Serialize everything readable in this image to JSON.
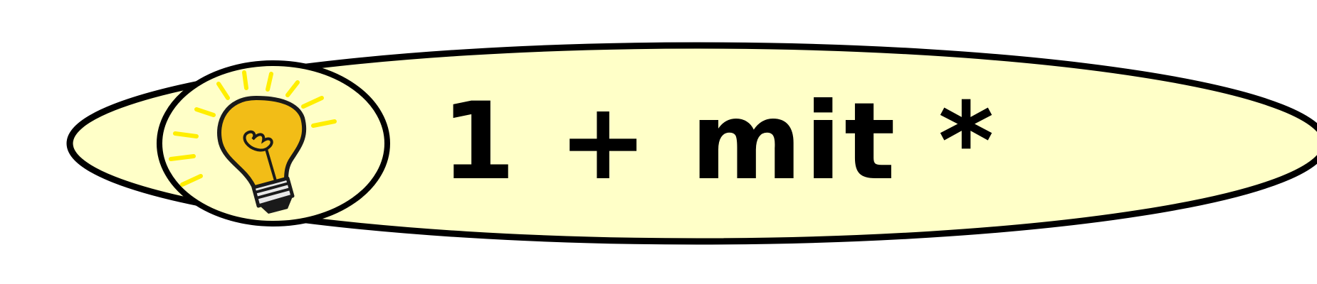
{
  "banner": {
    "text": "1 + mit *",
    "icon": "lightbulb-icon",
    "colors": {
      "fill": "#ffffc8",
      "outline": "#000000",
      "bulb": "#f2bd17",
      "rays": "#ffee00",
      "text": "#000000"
    }
  }
}
